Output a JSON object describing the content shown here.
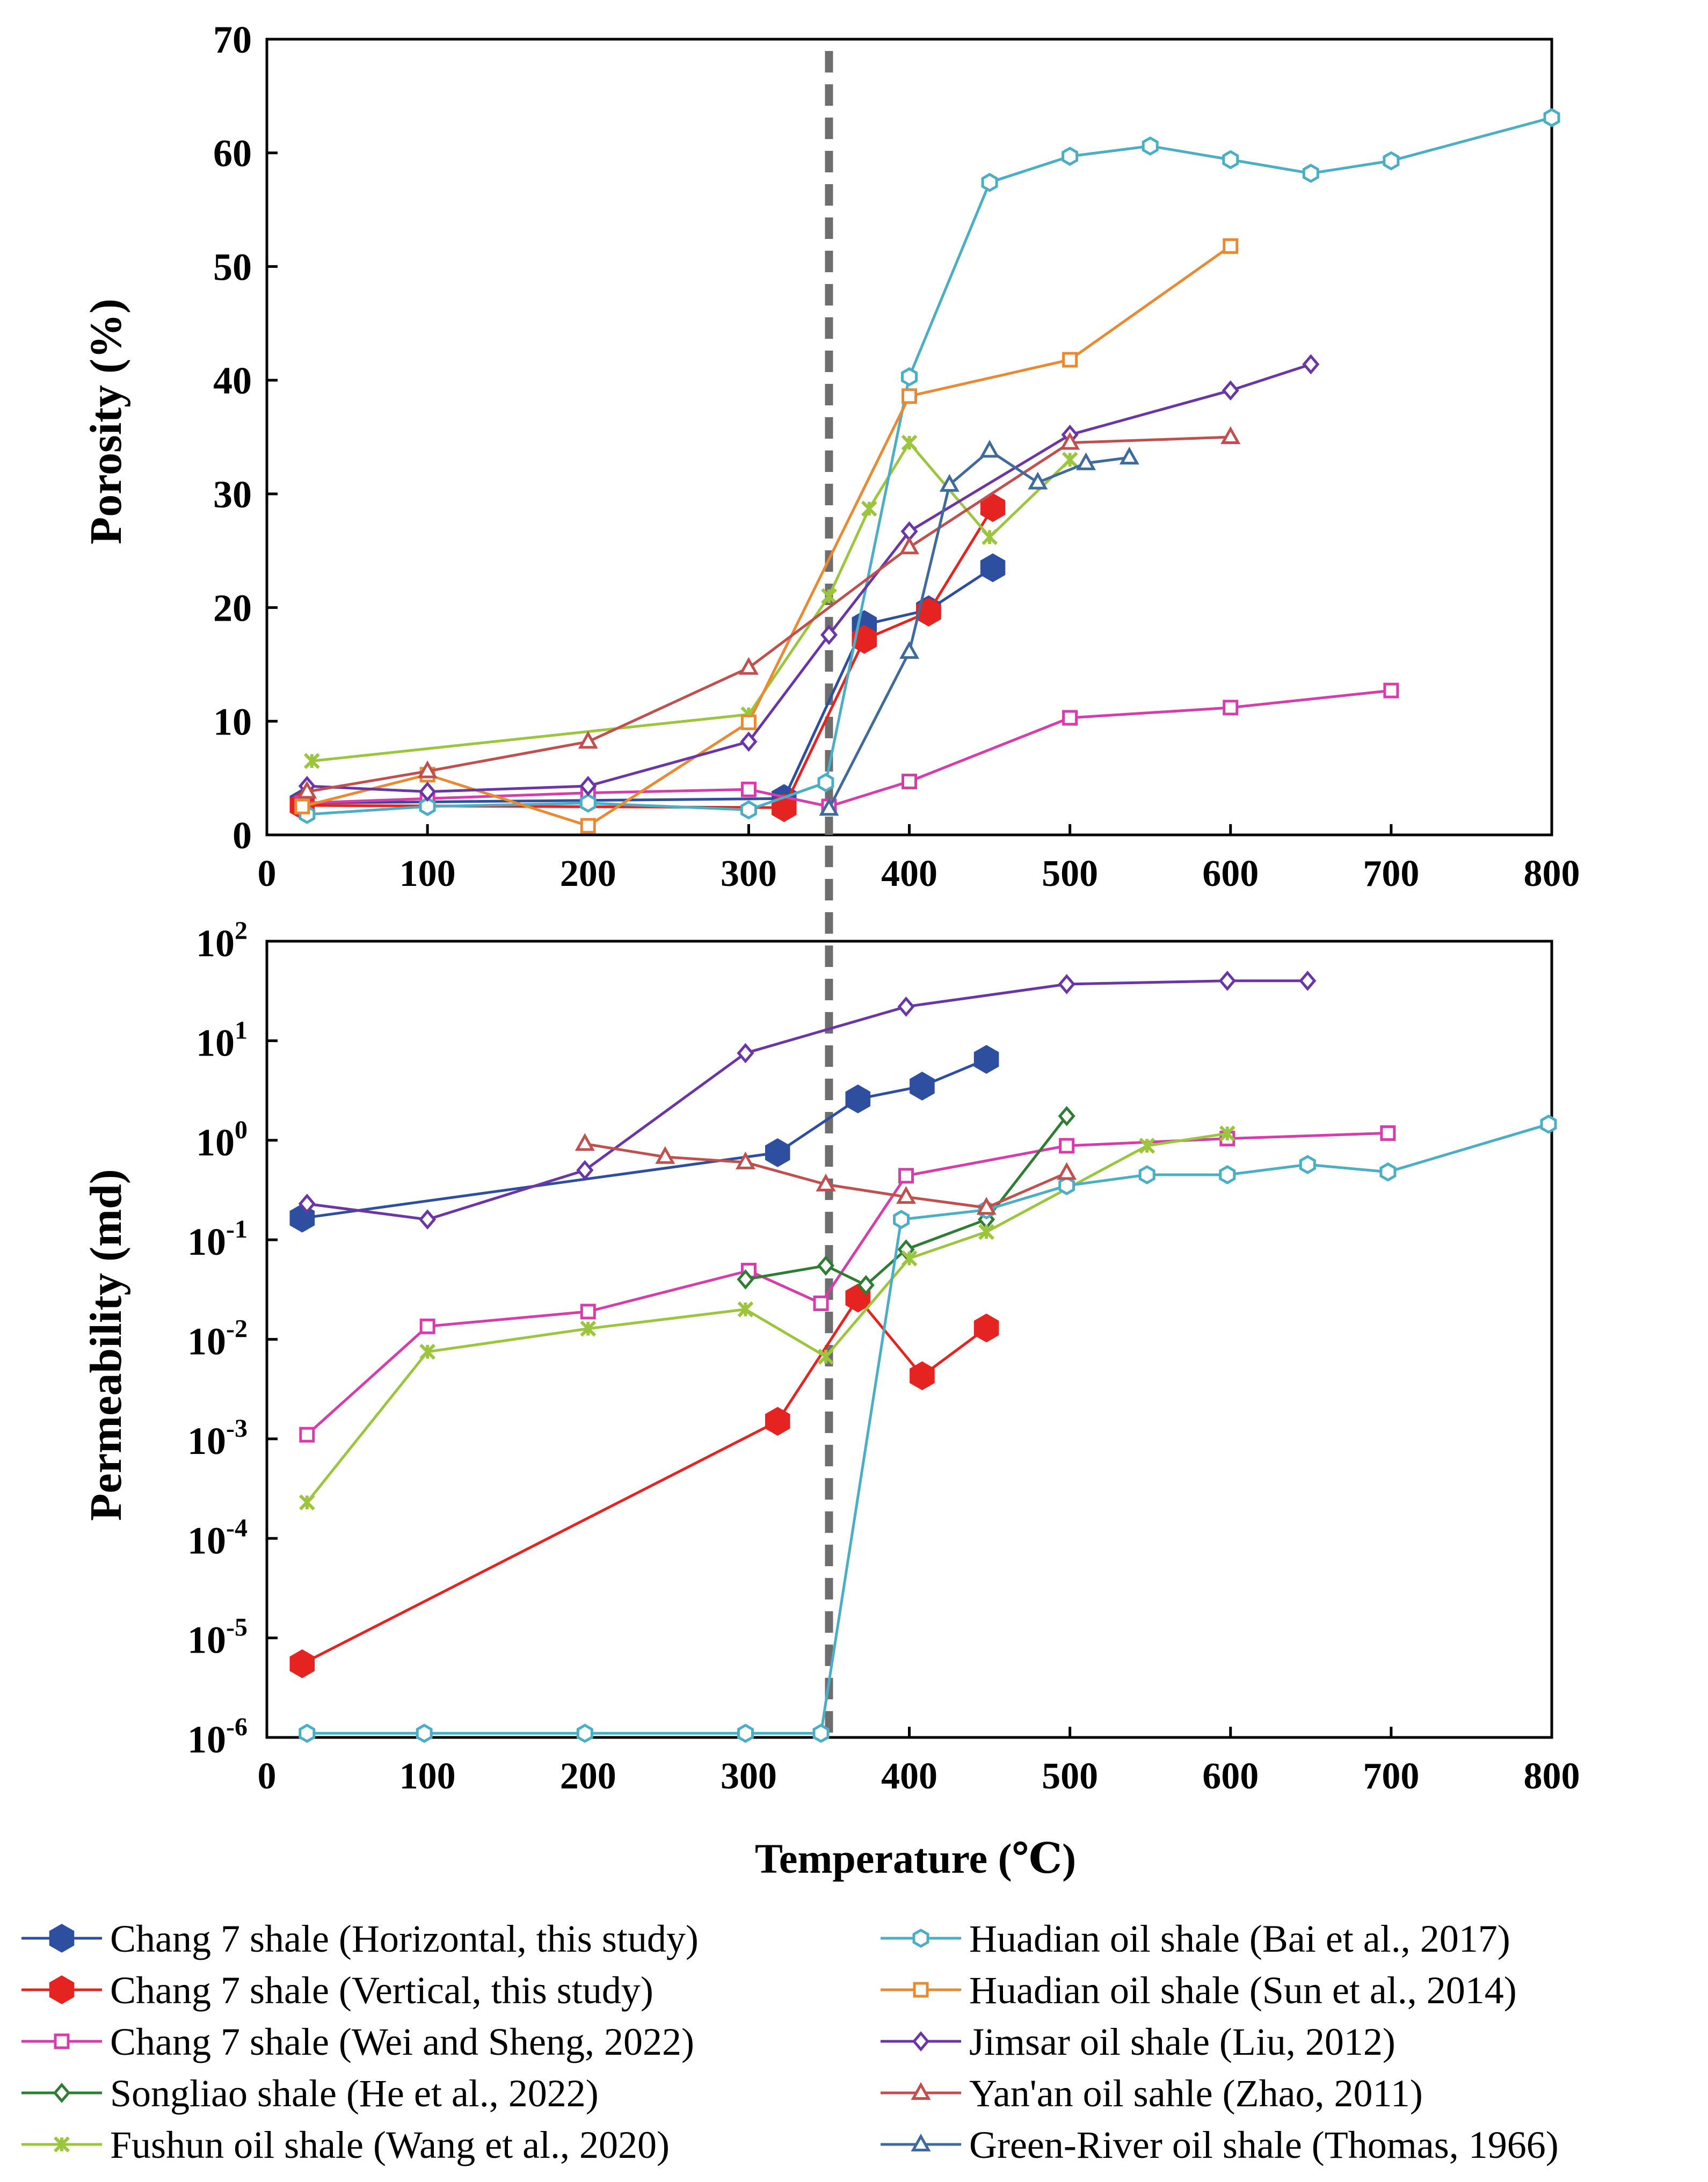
{
  "chart_data": [
    {
      "type": "line",
      "id": "porosity",
      "ylabel": "Porosity (%)",
      "xlim": [
        0,
        800
      ],
      "ylim": [
        0,
        70
      ],
      "x_ticks": [
        "0",
        "100",
        "200",
        "300",
        "400",
        "500",
        "600",
        "700",
        "800"
      ],
      "y_ticks": [
        "0",
        "10",
        "20",
        "30",
        "40",
        "50",
        "60",
        "70"
      ],
      "vline_x": 350,
      "series": [
        {
          "key": "s1",
          "points": [
            [
              22,
              2.8
            ],
            [
              322,
              3.2
            ],
            [
              372,
              18.5
            ],
            [
              412,
              19.8
            ],
            [
              452,
              23.5
            ]
          ]
        },
        {
          "key": "s2",
          "points": [
            [
              22,
              2.6
            ],
            [
              322,
              2.4
            ],
            [
              372,
              17.2
            ],
            [
              412,
              19.6
            ],
            [
              452,
              28.8
            ]
          ]
        },
        {
          "key": "s3",
          "points": [
            [
              22,
              2.8
            ],
            [
              100,
              3.2
            ],
            [
              200,
              3.7
            ],
            [
              300,
              4.0
            ],
            [
              350,
              2.5
            ],
            [
              400,
              4.7
            ],
            [
              500,
              10.3
            ],
            [
              600,
              11.2
            ],
            [
              700,
              12.7
            ]
          ]
        },
        {
          "key": "s5",
          "points": [
            [
              28,
              6.5
            ],
            [
              300,
              10.6
            ],
            [
              350,
              21.0
            ],
            [
              375,
              28.7
            ],
            [
              400,
              34.5
            ],
            [
              450,
              26.2
            ],
            [
              500,
              33.0
            ]
          ]
        },
        {
          "key": "s6",
          "points": [
            [
              25,
              1.8
            ],
            [
              100,
              2.5
            ],
            [
              200,
              2.8
            ],
            [
              300,
              2.2
            ],
            [
              348,
              4.6
            ],
            [
              400,
              40.3
            ],
            [
              450,
              57.4
            ],
            [
              500,
              59.7
            ],
            [
              550,
              60.6
            ],
            [
              600,
              59.4
            ],
            [
              650,
              58.2
            ],
            [
              700,
              59.3
            ],
            [
              800,
              63.1
            ]
          ]
        },
        {
          "key": "s7",
          "points": [
            [
              22,
              2.5
            ],
            [
              100,
              5.3
            ],
            [
              200,
              0.8
            ],
            [
              300,
              9.9
            ],
            [
              400,
              38.6
            ],
            [
              500,
              41.8
            ],
            [
              600,
              51.8
            ]
          ]
        },
        {
          "key": "s8",
          "points": [
            [
              25,
              4.3
            ],
            [
              100,
              3.8
            ],
            [
              200,
              4.3
            ],
            [
              300,
              8.2
            ],
            [
              350,
              17.6
            ],
            [
              400,
              26.7
            ],
            [
              500,
              35.2
            ],
            [
              600,
              39.1
            ],
            [
              650,
              41.4
            ]
          ]
        },
        {
          "key": "s9",
          "points": [
            [
              25,
              3.8
            ],
            [
              100,
              5.6
            ],
            [
              200,
              8.2
            ],
            [
              300,
              14.7
            ],
            [
              400,
              25.3
            ],
            [
              500,
              34.5
            ],
            [
              600,
              35.0
            ]
          ]
        },
        {
          "key": "s10",
          "points": [
            [
              350,
              2.3
            ],
            [
              400,
              16.1
            ],
            [
              425,
              30.8
            ],
            [
              450,
              33.8
            ],
            [
              480,
              31.0
            ],
            [
              510,
              32.7
            ],
            [
              537,
              33.2
            ]
          ]
        }
      ]
    },
    {
      "type": "line",
      "id": "permeability",
      "ylabel": "Permeability (md)",
      "xlabel": "Temperature (℃)",
      "xlim": [
        0,
        800
      ],
      "ylim_log10": [
        -6,
        2
      ],
      "x_ticks": [
        "0",
        "100",
        "200",
        "300",
        "400",
        "500",
        "600",
        "700",
        "800"
      ],
      "y_ticks": [
        {
          "base": "10",
          "exp": "2"
        },
        {
          "base": "10",
          "exp": "1"
        },
        {
          "base": "10",
          "exp": "0"
        },
        {
          "base": "10",
          "exp": "-1"
        },
        {
          "base": "10",
          "exp": "-2"
        },
        {
          "base": "10",
          "exp": "-3"
        },
        {
          "base": "10",
          "exp": "-4"
        },
        {
          "base": "10",
          "exp": "-5"
        },
        {
          "base": "10",
          "exp": "-6"
        }
      ],
      "vline_x": 350,
      "series": [
        {
          "key": "s1",
          "points": [
            [
              22,
              0.165
            ],
            [
              318,
              0.75
            ],
            [
              368,
              2.6
            ],
            [
              408,
              3.5
            ],
            [
              448,
              6.5
            ]
          ]
        },
        {
          "key": "s2",
          "points": [
            [
              22,
              5.5e-06
            ],
            [
              318,
              0.0015
            ],
            [
              368,
              0.026
            ],
            [
              408,
              0.0043
            ],
            [
              448,
              0.013
            ]
          ]
        },
        {
          "key": "s3",
          "points": [
            [
              25,
              0.0011
            ],
            [
              100,
              0.0135
            ],
            [
              200,
              0.019
            ],
            [
              300,
              0.049
            ],
            [
              345,
              0.023
            ],
            [
              398,
              0.44
            ],
            [
              498,
              0.88
            ],
            [
              598,
              1.04
            ],
            [
              698,
              1.18
            ]
          ]
        },
        {
          "key": "s4",
          "points": [
            [
              298,
              0.04
            ],
            [
              348,
              0.055
            ],
            [
              373,
              0.035
            ],
            [
              398,
              0.08
            ],
            [
              448,
              0.16
            ],
            [
              498,
              1.75
            ]
          ]
        },
        {
          "key": "s5",
          "points": [
            [
              25,
              0.00023
            ],
            [
              100,
              0.0075
            ],
            [
              200,
              0.0128
            ],
            [
              298,
              0.02
            ],
            [
              348,
              0.0067
            ],
            [
              400,
              0.065
            ],
            [
              448,
              0.12
            ],
            [
              548,
              0.88
            ],
            [
              598,
              1.17
            ]
          ]
        },
        {
          "key": "s6",
          "points": [
            [
              25,
              1.1e-06
            ],
            [
              98,
              1.1e-06
            ],
            [
              198,
              1.1e-06
            ],
            [
              298,
              1.1e-06
            ],
            [
              345,
              1.1e-06
            ],
            [
              395,
              0.16
            ],
            [
              448,
              0.2
            ],
            [
              498,
              0.35
            ],
            [
              548,
              0.45
            ],
            [
              598,
              0.45
            ],
            [
              648,
              0.57
            ],
            [
              698,
              0.48
            ],
            [
              798,
              1.45
            ]
          ]
        },
        {
          "key": "s8",
          "points": [
            [
              25,
              0.23
            ],
            [
              100,
              0.16
            ],
            [
              198,
              0.5
            ],
            [
              298,
              7.5
            ],
            [
              398,
              22.0
            ],
            [
              498,
              37.0
            ],
            [
              598,
              40.0
            ],
            [
              648,
              40.0
            ]
          ]
        },
        {
          "key": "s9",
          "points": [
            [
              198,
              0.92
            ],
            [
              248,
              0.68
            ],
            [
              298,
              0.6
            ],
            [
              348,
              0.36
            ],
            [
              398,
              0.27
            ],
            [
              448,
              0.21
            ],
            [
              498,
              0.47
            ]
          ]
        }
      ]
    }
  ],
  "legend": [
    {
      "key": "s1",
      "label": "Chang 7 shale (Horizontal, this study)",
      "color": "#2e4fa0",
      "marker": "hex-filled"
    },
    {
      "key": "s2",
      "label": "Chang 7 shale (Vertical, this study)",
      "color": "#e52421",
      "marker": "hex-filled"
    },
    {
      "key": "s3",
      "label": "Chang 7 shale (Wei and Sheng, 2022)",
      "color": "#d63dab",
      "marker": "square"
    },
    {
      "key": "s4",
      "label": "Songliao shale (He et al., 2022)",
      "color": "#2e7d32",
      "marker": "diamond"
    },
    {
      "key": "s5",
      "label": "Fushun oil shale (Wang et al., 2020)",
      "color": "#9bc53d",
      "marker": "star"
    },
    {
      "key": "s6",
      "label": "Huadian oil shale (Bai et al., 2017)",
      "color": "#4baec4",
      "marker": "hex-open"
    },
    {
      "key": "s7",
      "label": "Huadian oil shale (Sun et al., 2014)",
      "color": "#e98a33",
      "marker": "square"
    },
    {
      "key": "s8",
      "label": "Jimsar oil shale (Liu, 2012)",
      "color": "#6a35a6",
      "marker": "diamond"
    },
    {
      "key": "s9",
      "label": "Yan'an oil sahle (Zhao, 2011)",
      "color": "#c0504d",
      "marker": "triangle"
    },
    {
      "key": "s10",
      "label": "Green-River oil shale (Thomas, 1966)",
      "color": "#3f6a9c",
      "marker": "triangle"
    }
  ]
}
